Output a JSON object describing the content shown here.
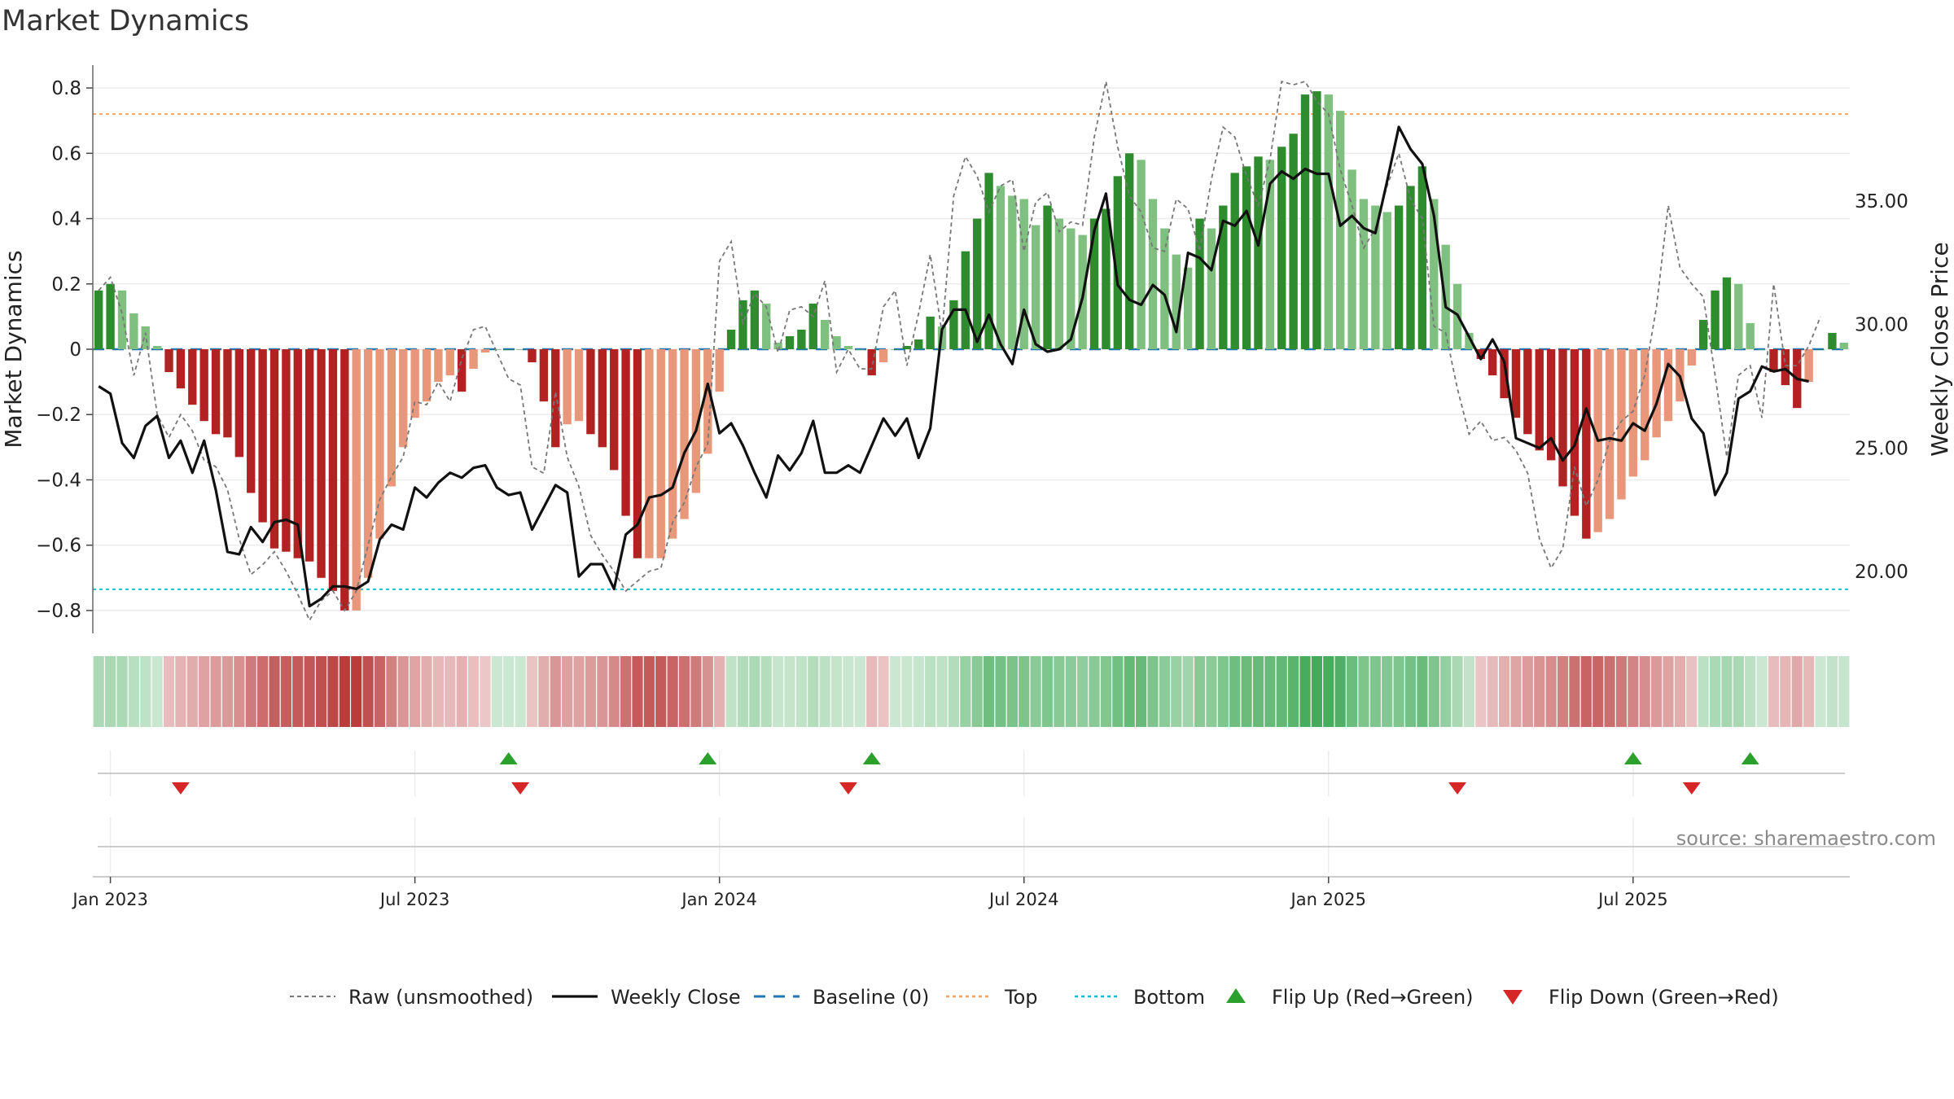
{
  "chart_data": {
    "type": "bar",
    "title": "Market Dynamics",
    "ylabel_left": "Market Dynamics",
    "ylabel_right": "Weekly Close Price",
    "ylim": [
      -0.87,
      0.87
    ],
    "ylim_right": [
      17.5,
      40.5
    ],
    "left_ticks": [
      "0.8",
      "0.6",
      "0.4",
      "0.2",
      "0",
      "−0.2",
      "−0.4",
      "−0.6",
      "−0.8"
    ],
    "left_tick_values": [
      0.8,
      0.6,
      0.4,
      0.2,
      0,
      -0.2,
      -0.4,
      -0.6,
      -0.8
    ],
    "right_ticks": [
      "35.00",
      "30.00",
      "25.00",
      "20.00"
    ],
    "right_tick_values": [
      35,
      30,
      25,
      20
    ],
    "x_ticks": [
      "Jan 2023",
      "Jul 2023",
      "Jan 2024",
      "Jul 2024",
      "Jan 2025",
      "Jul 2025"
    ],
    "x_tick_weeks": [
      1,
      27,
      53,
      79,
      105,
      131
    ],
    "top_level": 0.72,
    "bottom_level": -0.735,
    "grid": true,
    "legend_position": "bottom-center",
    "source": "source: sharemaestro.com",
    "colors": {
      "strong_green": "#2e8b2e",
      "light_green": "#7fbf7f",
      "strong_red": "#b22222",
      "light_red": "#e8977a",
      "weekly_close": "#111111",
      "raw": "#777777",
      "baseline": "#1f77b4",
      "top": "#f4a460",
      "bottom": "#17becf",
      "flip_up": "#2ca02c",
      "flip_down": "#d62728"
    },
    "legend": [
      {
        "label": "Raw (unsmoothed)",
        "kind": "dotted-gray"
      },
      {
        "label": "Weekly Close",
        "kind": "solid-black"
      },
      {
        "label": "Baseline (0)",
        "kind": "dashed-blue"
      },
      {
        "label": "Top",
        "kind": "dotted-orange"
      },
      {
        "label": "Bottom",
        "kind": "dotted-cyan"
      },
      {
        "label": "Flip Up (Red→Green)",
        "kind": "triangle-up"
      },
      {
        "label": "Flip Down (Green→Red)",
        "kind": "triangle-down"
      }
    ],
    "series": [
      {
        "name": "Market Dynamics",
        "values": [
          0.18,
          0.2,
          0.18,
          0.11,
          0.07,
          0.01,
          -0.07,
          -0.12,
          -0.17,
          -0.22,
          -0.26,
          -0.27,
          -0.33,
          -0.44,
          -0.53,
          -0.61,
          -0.62,
          -0.64,
          -0.65,
          -0.7,
          -0.74,
          -0.8,
          -0.8,
          -0.7,
          -0.58,
          -0.42,
          -0.3,
          -0.21,
          -0.16,
          -0.1,
          -0.08,
          -0.13,
          -0.06,
          -0.01,
          0.0,
          0.0,
          0.0,
          -0.04,
          -0.16,
          -0.3,
          -0.23,
          -0.22,
          -0.26,
          -0.3,
          -0.37,
          -0.51,
          -0.64,
          -0.64,
          -0.64,
          -0.58,
          -0.52,
          -0.44,
          -0.32,
          -0.13,
          0.06,
          0.15,
          0.18,
          0.14,
          0.02,
          0.04,
          0.06,
          0.14,
          0.09,
          0.04,
          0.01,
          0.0,
          -0.08,
          -0.04,
          0.0,
          0.01,
          0.03,
          0.1,
          0.07,
          0.15,
          0.3,
          0.4,
          0.54,
          0.5,
          0.47,
          0.46,
          0.38,
          0.44,
          0.4,
          0.37,
          0.35,
          0.4,
          0.43,
          0.53,
          0.6,
          0.58,
          0.46,
          0.37,
          0.29,
          0.25,
          0.4,
          0.37,
          0.44,
          0.54,
          0.56,
          0.59,
          0.58,
          0.62,
          0.66,
          0.78,
          0.79,
          0.78,
          0.73,
          0.55,
          0.46,
          0.44,
          0.42,
          0.44,
          0.5,
          0.56,
          0.46,
          0.32,
          0.2,
          0.05,
          -0.03,
          -0.08,
          -0.15,
          -0.21,
          -0.26,
          -0.31,
          -0.34,
          -0.42,
          -0.51,
          -0.58,
          -0.56,
          -0.52,
          -0.46,
          -0.39,
          -0.34,
          -0.27,
          -0.22,
          -0.16,
          -0.05,
          0.09,
          0.18,
          0.22,
          0.2,
          0.08,
          0.0,
          -0.07,
          -0.11,
          -0.18,
          -0.1,
          0.0,
          0.05,
          0.02
        ]
      },
      {
        "name": "Weekly Close",
        "values": [
          27.5,
          27.2,
          25.2,
          24.6,
          25.9,
          26.3,
          24.6,
          25.3,
          24.0,
          25.3,
          23.3,
          20.8,
          20.7,
          21.8,
          21.2,
          22.0,
          22.1,
          21.9,
          18.6,
          18.9,
          19.4,
          19.4,
          19.3,
          19.6,
          21.3,
          21.9,
          21.7,
          23.4,
          23.0,
          23.6,
          24.0,
          23.8,
          24.2,
          24.3,
          23.4,
          23.1,
          23.2,
          21.7,
          22.6,
          23.5,
          23.2,
          19.8,
          20.3,
          20.3,
          19.3,
          21.5,
          21.9,
          23.0,
          23.1,
          23.4,
          24.8,
          25.7,
          27.6,
          25.6,
          26.0,
          25.1,
          24.0,
          23.0,
          24.7,
          24.1,
          24.8,
          26.1,
          24.0,
          24.0,
          24.3,
          24.0,
          25.1,
          26.2,
          25.5,
          26.2,
          24.6,
          25.8,
          29.8,
          30.6,
          30.6,
          29.3,
          30.4,
          29.2,
          28.4,
          30.6,
          29.2,
          28.9,
          29.0,
          29.4,
          31.1,
          33.8,
          35.3,
          31.6,
          31.0,
          30.8,
          31.6,
          31.2,
          29.7,
          32.9,
          32.7,
          32.2,
          34.2,
          34.0,
          34.6,
          33.2,
          35.7,
          36.2,
          35.9,
          36.3,
          36.1,
          36.1,
          34.0,
          34.4,
          33.9,
          33.7,
          35.8,
          38.0,
          37.1,
          36.5,
          34.4,
          30.7,
          30.4,
          29.5,
          28.6,
          29.4,
          28.5,
          25.4,
          25.2,
          25.0,
          25.4,
          24.5,
          25.1,
          26.6,
          25.3,
          25.4,
          25.3,
          26.0,
          25.7,
          26.8,
          28.4,
          27.9,
          26.2,
          25.6,
          23.1,
          24.0,
          27.0,
          27.3,
          28.3,
          28.1,
          28.2,
          27.8,
          27.7
        ]
      },
      {
        "name": "Raw (unsmoothed)",
        "values": [
          0.18,
          0.22,
          0.11,
          -0.08,
          0.05,
          -0.2,
          -0.27,
          -0.2,
          -0.25,
          -0.34,
          -0.36,
          -0.43,
          -0.58,
          -0.69,
          -0.66,
          -0.62,
          -0.68,
          -0.75,
          -0.83,
          -0.77,
          -0.74,
          -0.8,
          -0.74,
          -0.6,
          -0.46,
          -0.39,
          -0.33,
          -0.16,
          -0.17,
          -0.1,
          -0.16,
          -0.03,
          0.06,
          0.07,
          -0.01,
          -0.09,
          -0.11,
          -0.36,
          -0.38,
          -0.13,
          -0.33,
          -0.42,
          -0.57,
          -0.63,
          -0.68,
          -0.74,
          -0.71,
          -0.68,
          -0.67,
          -0.53,
          -0.47,
          -0.36,
          -0.29,
          0.27,
          0.33,
          0.08,
          0.17,
          0.13,
          -0.01,
          0.12,
          0.13,
          0.1,
          0.21,
          -0.07,
          0.0,
          -0.06,
          -0.06,
          0.13,
          0.18,
          -0.05,
          0.11,
          0.29,
          0.05,
          0.47,
          0.59,
          0.53,
          0.42,
          0.5,
          0.52,
          0.3,
          0.45,
          0.48,
          0.36,
          0.39,
          0.38,
          0.65,
          0.82,
          0.62,
          0.47,
          0.42,
          0.31,
          0.3,
          0.46,
          0.43,
          0.3,
          0.52,
          0.68,
          0.65,
          0.53,
          0.44,
          0.58,
          0.82,
          0.81,
          0.82,
          0.76,
          0.72,
          0.55,
          0.44,
          0.31,
          0.37,
          0.5,
          0.6,
          0.46,
          0.4,
          0.07,
          0.05,
          -0.12,
          -0.26,
          -0.22,
          -0.28,
          -0.27,
          -0.31,
          -0.38,
          -0.58,
          -0.67,
          -0.61,
          -0.36,
          -0.48,
          -0.4,
          -0.28,
          -0.22,
          -0.19,
          -0.08,
          0.13,
          0.44,
          0.25,
          0.2,
          0.16,
          -0.08,
          -0.33,
          -0.08,
          -0.05,
          -0.21,
          0.2,
          -0.05,
          -0.05,
          0.01,
          0.1
        ]
      }
    ],
    "flips_up_weeks": [
      35,
      52,
      66,
      131,
      141
    ],
    "flips_down_weeks": [
      7,
      36,
      64,
      116,
      136
    ]
  }
}
